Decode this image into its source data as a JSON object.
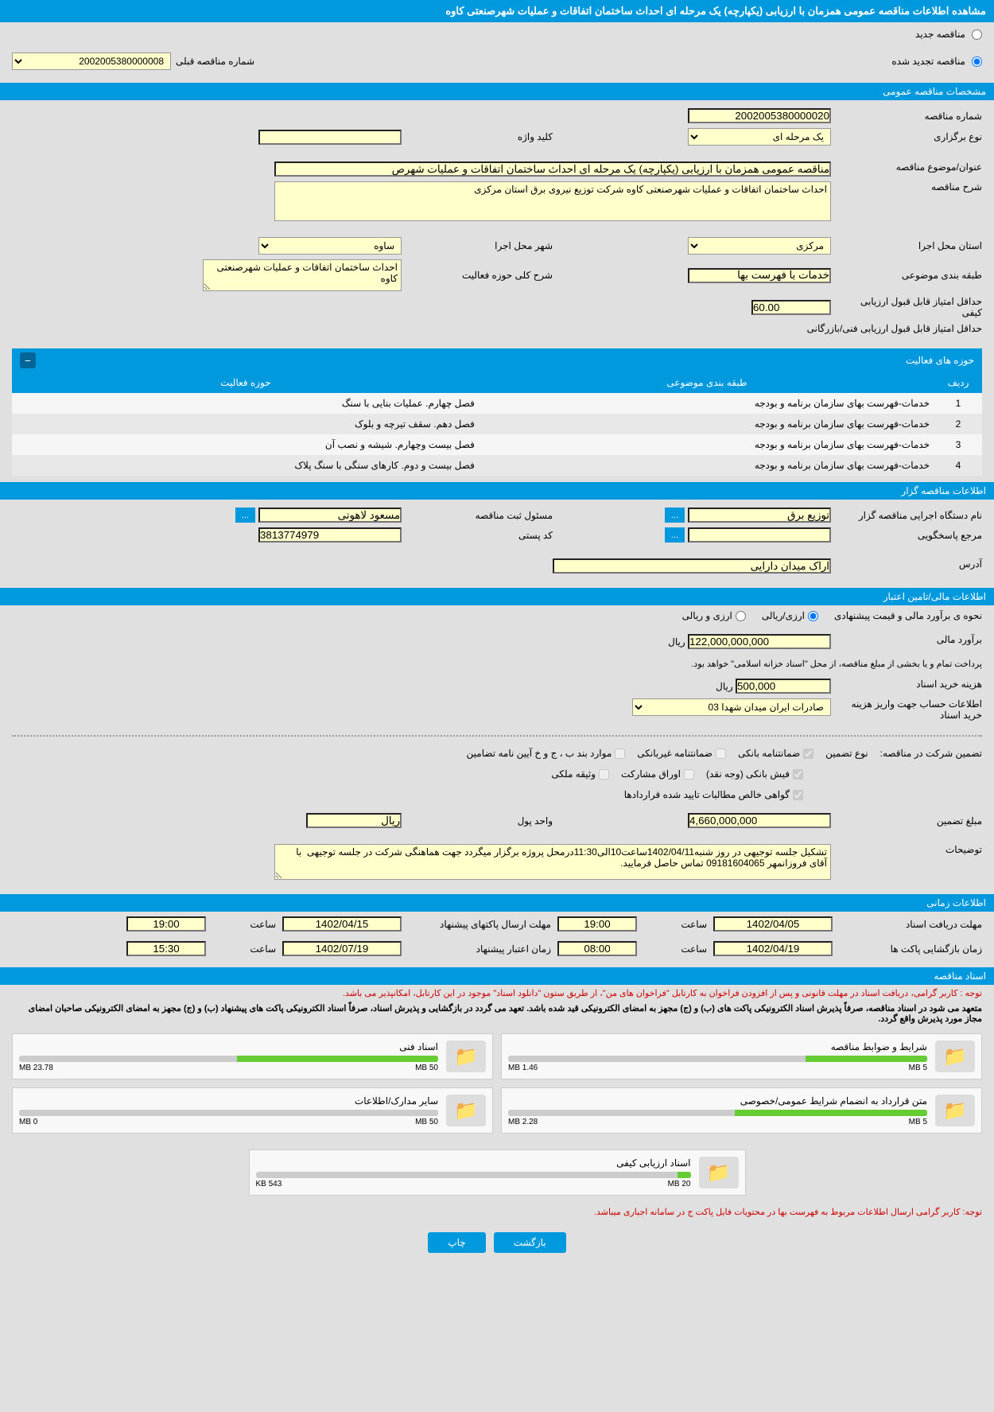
{
  "header": {
    "title": "مشاهده اطلاعات مناقصه عمومی همزمان با ارزیابی (یکپارچه) یک مرحله ای احداث ساختمان اتفاقات و عملیات شهرصنعتی کاوه"
  },
  "tenderType": {
    "new": "مناقصه جدید",
    "renewed": "مناقصه تجدید شده",
    "prevLabel": "شماره مناقصه قبلی",
    "prevNumber": "2002005380000008"
  },
  "sections": {
    "general": "مشخصات مناقصه عمومی",
    "organizer": "اطلاعات مناقصه گزار",
    "financial": "اطلاعات مالی/تامین اعتبار",
    "timing": "اطلاعات زمانی",
    "documents": "اسناد مناقصه"
  },
  "general": {
    "tenderNumberLabel": "شماره مناقصه",
    "tenderNumber": "2002005380000020",
    "holdTypeLabel": "نوع برگزاری",
    "holdType": "یک مرحله ای",
    "keywordLabel": "کلید واژه",
    "keyword": "",
    "titleLabel": "عنوان/موضوع مناقصه",
    "title": "مناقصه عمومی همزمان با ارزیابی (یکپارچه) یک مرحله ای احداث ساختمان اتفاقات و عملیات شهرص",
    "descLabel": "شرح مناقصه",
    "desc": "احداث ساختمان اتفاقات و عملیات شهرصنعتی کاوه شرکت توزیع نیروی برق استان مرکزی",
    "provinceLabel": "استان محل اجرا",
    "province": "مرکزی",
    "cityLabel": "شهر محل اجرا",
    "city": "ساوه",
    "categoryLabel": "طبقه بندی موضوعی",
    "category": "خدمات با فهرست بها",
    "activityDescLabel": "شرح کلی حوزه فعالیت",
    "activityDesc": "احداث ساختمان اتفاقات و عملیات شهرصنعتی کاوه",
    "qualityScoreLabel": "حداقل امتیاز قابل قبول ارزیابی کیفی",
    "qualityScore": "60.00",
    "techScoreLabel": "حداقل امتیاز قابل قبول ارزیابی فنی/بازرگانی",
    "techScore": ""
  },
  "activityTable": {
    "title": "حوزه های فعالیت",
    "headers": {
      "row": "ردیف",
      "category": "طبقه بندی موضوعی",
      "activity": "حوزه فعالیت"
    },
    "rows": [
      {
        "n": "1",
        "cat": "خدمات-فهرست بهای سازمان برنامه و بودجه",
        "act": "فصل چهارم. عملیات بنایی با سنگ"
      },
      {
        "n": "2",
        "cat": "خدمات-فهرست بهای سازمان برنامه و بودجه",
        "act": "فصل دهم. سقف تیرچه و بلوک"
      },
      {
        "n": "3",
        "cat": "خدمات-فهرست بهای سازمان برنامه و بودجه",
        "act": "فصل بیست وچهارم. شیشه و نصب آن"
      },
      {
        "n": "4",
        "cat": "خدمات-فهرست بهای سازمان برنامه و بودجه",
        "act": "فصل بیست و دوم. کارهای سنگی با سنگ پلاک"
      }
    ]
  },
  "organizer": {
    "execNameLabel": "نام دستگاه اجرایی مناقصه گزار",
    "execName": "توزیع برق",
    "regPersonLabel": "مسئول ثبت مناقصه",
    "regPerson": "مسعود لاهوتی",
    "responseLabel": "مرجع پاسخگویی",
    "response": "",
    "postalLabel": "کد پستی",
    "postal": "3813774979",
    "addressLabel": "آدرس",
    "address": "اراک میدان دارایی",
    "moreBtn": "..."
  },
  "financial": {
    "estimateMethodLabel": "نحوه ی برآورد مالی و قیمت پیشنهادی",
    "currencyRial": "ارزی/ریالی",
    "currencyBoth": "ارزی و ریالی",
    "estimateLabel": "برآورد مالی",
    "estimate": "122,000,000,000",
    "rial": "ریال",
    "paymentNote": "پرداخت تمام و یا بخشی از مبلغ مناقصه، از محل \"اسناد خزانه اسلامی\" خواهد بود.",
    "docCostLabel": "هزینه خرید اسناد",
    "docCost": "500,000",
    "accountLabel": "اطلاعات حساب جهت واریز هزینه خرید اسناد",
    "account": "صادرات ایران میدان شهدا 03",
    "guaranteeTypeLabel": "تضمین شرکت در مناقصه:",
    "guaranteeTypeLabel2": "نوع تضمین",
    "guarantees": {
      "bank": "ضمانتنامه بانکی",
      "nonbank": "ضمانتنامه غیربانکی",
      "other": "موارد بند ب ، ج و خ آیین نامه تضامین",
      "cash": "فیش بانکی (وجه نقد)",
      "stock": "اوراق مشارکت",
      "property": "وثیقه ملکی",
      "cert": "گواهی خالص مطالبات تایید شده قراردادها"
    },
    "guaranteeAmountLabel": "مبلغ تضمین",
    "guaranteeAmount": "4,660,000,000",
    "currencyUnitLabel": "واحد پول",
    "currencyUnit": "ریال",
    "notesLabel": "توضیحات",
    "notes": "تشکیل جلسه توجیهی در روز شنبه1402/04/11ساعت10الی11:30درمحل پروژه برگزار میگردد جهت هماهنگی شرکت در جلسه توجیهی  با آقای فروزانمهر 09181604065 تماس حاصل فرمایید."
  },
  "timing": {
    "docDeadlineLabel": "مهلت دریافت اسناد",
    "docDeadline": "1402/04/05",
    "time1Label": "ساعت",
    "time1": "19:00",
    "packetDeadlineLabel": "مهلت ارسال پاکتهای پیشنهاد",
    "packetDeadline": "1402/04/15",
    "time2": "19:00",
    "openingLabel": "زمان بازگشایی پاکت ها",
    "opening": "1402/04/19",
    "time3": "08:00",
    "validityLabel": "زمان اعتبار پیشنهاد",
    "validity": "1402/07/19",
    "time4": "15:30"
  },
  "documents": {
    "note1": "توجه : کاربر گرامی، دریافت اسناد در مهلت قانونی و پس از افزودن فراخوان به کارتابل \"فراخوان های من\"، از طریق ستون \"دانلود اسناد\" موجود در این کارتابل، امکانپذیر می باشد.",
    "note2": "متعهد می شود در اسناد مناقصه، صرفاً پذیرش اسناد الکترونیکی پاکت های (ب) و (ج) مجهز به امضای الکترونیکی قید شده باشد. تعهد می گردد در بازگشایی و پذیرش اسناد، صرفاً اسناد الکترونیکی پاکت های پیشنهاد (ب) و (ج) مجهز به امضای الکترونیکی صاحبان امضای مجاز مورد پذیرش واقع گردد.",
    "note3": "توجه: کاربر گرامی ارسال اطلاعات مربوط به فهرست بها در محتویات فایل پاکت ج در سامانه اجباری میباشد.",
    "items": [
      {
        "name": "شرایط و ضوابط مناقصه",
        "size": "1.46 MB",
        "max": "5 MB",
        "pct": 29
      },
      {
        "name": "اسناد فنی",
        "size": "23.78 MB",
        "max": "50 MB",
        "pct": 48
      },
      {
        "name": "متن قرارداد به انضمام شرایط عمومی/خصوصی",
        "size": "2.28 MB",
        "max": "5 MB",
        "pct": 46
      },
      {
        "name": "سایر مدارک/اطلاعات",
        "size": "0 MB",
        "max": "50 MB",
        "pct": 0
      },
      {
        "name": "اسناد ارزیابی کیفی",
        "size": "543 KB",
        "max": "20 MB",
        "pct": 3
      }
    ]
  },
  "buttons": {
    "back": "بازگشت",
    "print": "چاپ"
  },
  "colors": {
    "primary": "#0099dd",
    "yellow": "#ffffcc",
    "red": "#cc0000",
    "green": "#66cc33"
  }
}
